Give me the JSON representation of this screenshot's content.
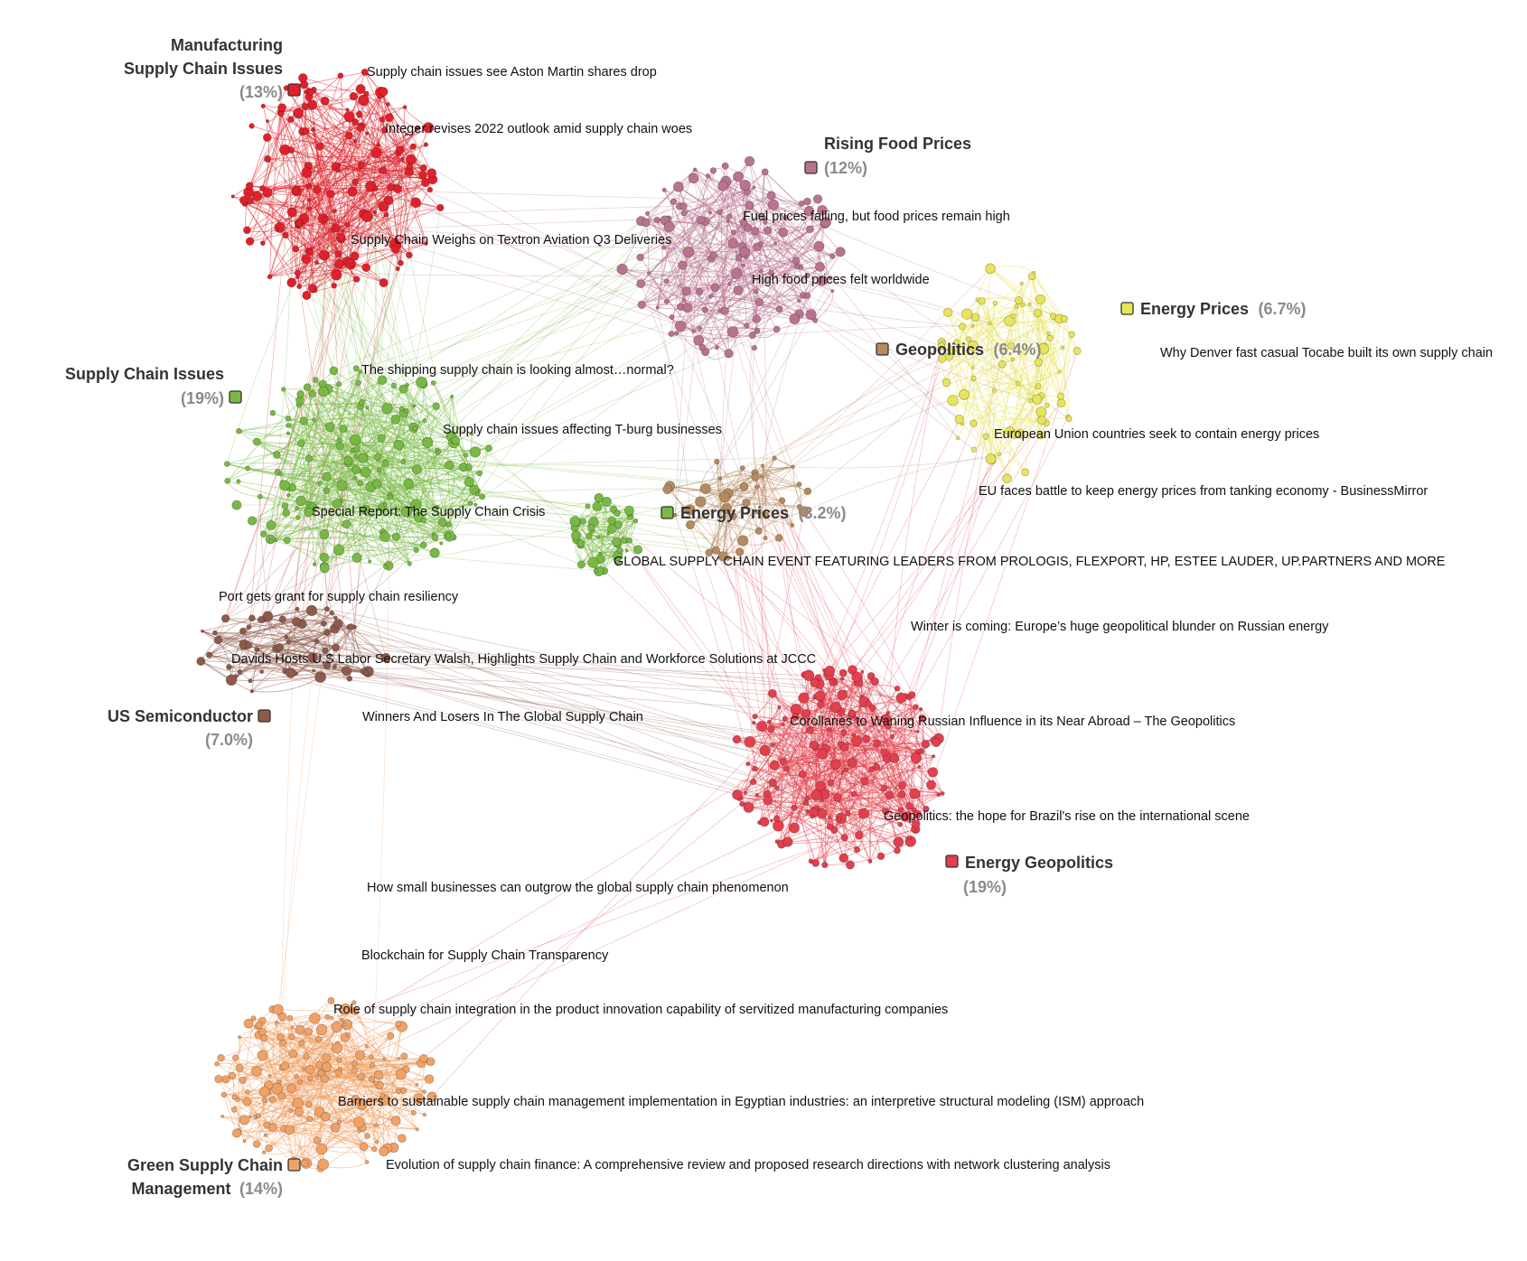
{
  "colors": {
    "manufacturing": "#e0212b",
    "food": "#b9738f",
    "energy_prices_y": "#e8e45a",
    "geopolitics": "#b58a5e",
    "supply": "#78b944",
    "energy_green": "#78b944",
    "semiconductor": "#8e5a4a",
    "energy_geo": "#e33f4d",
    "green": "#f0a266"
  },
  "clusters": [
    {
      "key": "manufacturing",
      "name1": "Manufacturing",
      "name2": "Supply Chain Issues",
      "pct": "(13%)",
      "color": "#e0212b"
    },
    {
      "key": "food",
      "name": "Rising Food Prices",
      "pct": "(12%)",
      "color": "#b9738f"
    },
    {
      "key": "energy_prices_y",
      "name": "Energy Prices",
      "pct": "(6.7%)",
      "color": "#e8e45a"
    },
    {
      "key": "geopolitics",
      "name": "Geopolitics",
      "pct": "(6.4%)",
      "color": "#b58a5e"
    },
    {
      "key": "supply",
      "name": "Supply Chain Issues",
      "pct": "(19%)",
      "color": "#78b944"
    },
    {
      "key": "energy_green",
      "name": "Energy Prices",
      "pct": "(3.2%)",
      "color": "#78b944"
    },
    {
      "key": "semiconductor",
      "name": "US Semiconductor",
      "pct": "(7.0%)",
      "color": "#8e5a4a"
    },
    {
      "key": "energy_geo",
      "name": "Energy Geopolitics",
      "pct": "(19%)",
      "color": "#e33f4d"
    },
    {
      "key": "green",
      "name1": "Green Supply Chain",
      "name2": "Management",
      "pct": "(14%)",
      "color": "#f0a266"
    }
  ],
  "articles": [
    "Supply chain issues see Aston Martin shares drop",
    "Integer revises 2022 outlook amid supply chain woes",
    "Supply Chain Weighs on Textron Aviation Q3 Deliveries",
    "Fuel prices falling, but food prices remain high",
    "High food prices felt worldwide",
    "Why Denver fast casual Tocabe built its own supply chain",
    "The shipping supply chain is looking almost…normal?",
    "Supply chain issues affecting T-burg businesses",
    "European Union countries seek to contain energy prices",
    "EU faces battle to keep energy prices from tanking economy - BusinessMirror",
    "Special Report: The Supply Chain Crisis",
    "GLOBAL SUPPLY CHAIN EVENT FEATURING LEADERS FROM PROLOGIS, FLEXPORT, HP, ESTEE LAUDER, UP.PARTNERS AND MORE",
    "Port gets grant for supply chain resiliency",
    "Winter is coming: Europe’s huge geopolitical blunder on Russian energy",
    "Davids Hosts U.S Labor Secretary Walsh, Highlights Supply Chain and Workforce Solutions at JCCC",
    "Winners And Losers In The Global Supply Chain",
    "Corollaries to Waning Russian Influence in its Near Abroad – The Geopolitics",
    "Geopolitics: the hope for Brazil's rise on the international scene",
    "How small businesses can outgrow the global supply chain phenomenon",
    "Blockchain for Supply Chain Transparency",
    "Role of supply chain integration in the product innovation capability of servitized manufacturing companies",
    "Barriers to sustainable supply chain management implementation in Egyptian industries: an interpretive structural modeling (ISM) approach",
    "Evolution of supply chain finance: A comprehensive review and proposed research directions with network clustering analysis"
  ]
}
